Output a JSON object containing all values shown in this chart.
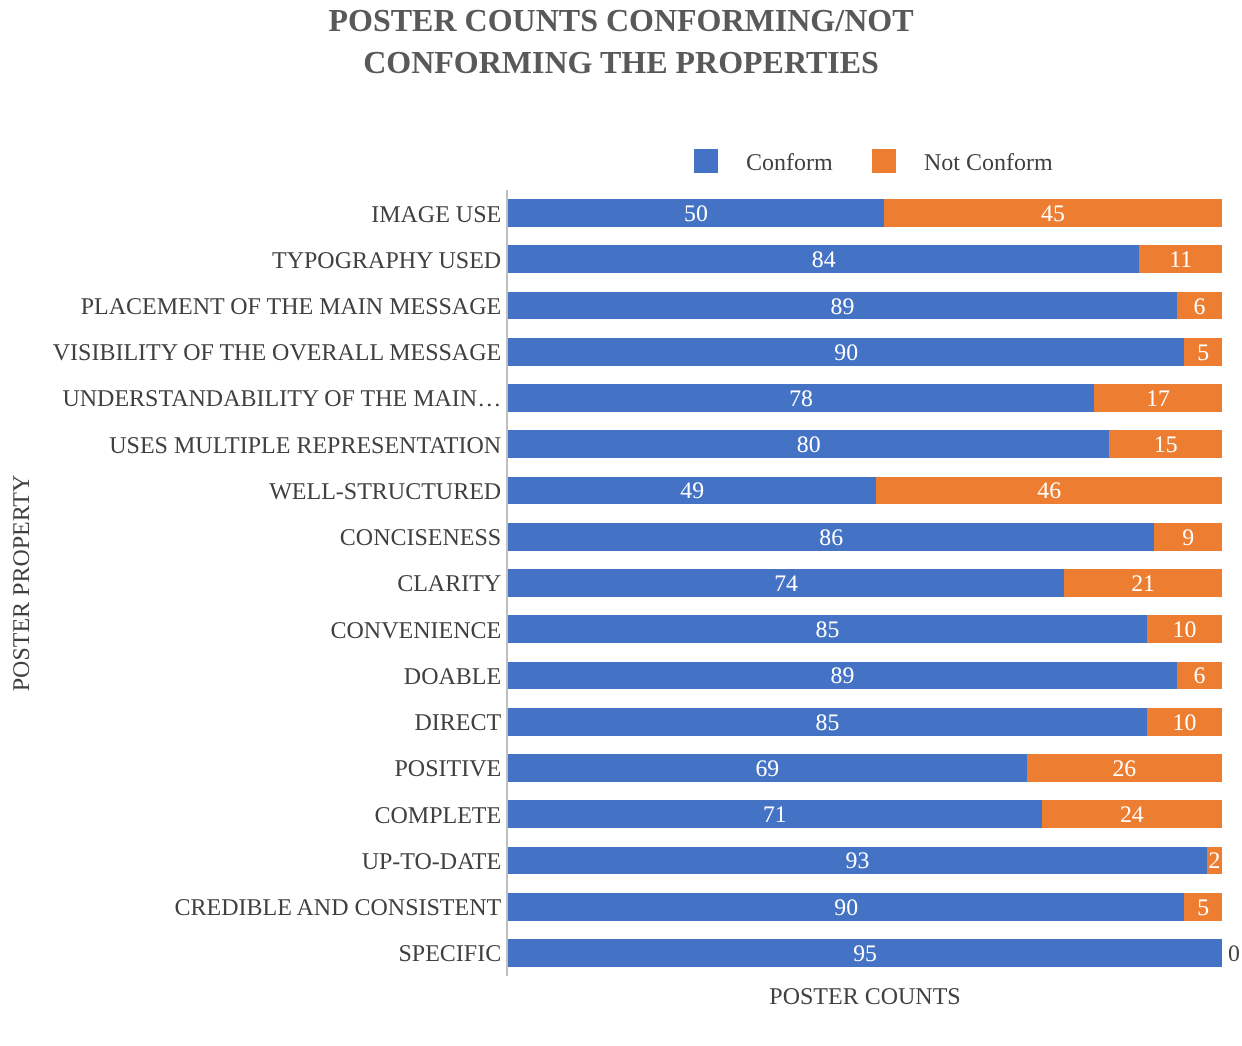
{
  "chart_data": {
    "type": "bar",
    "orientation": "horizontal",
    "stacked": true,
    "title": "POSTER COUNTS CONFORMING/NOT CONFORMING THE PROPERTIES",
    "xlabel": "POSTER COUNTS",
    "ylabel": "POSTER PROPERTY",
    "legend": "top",
    "data_labels": true,
    "tick_labels": "y",
    "categories": [
      "IMAGE USE",
      "TYPOGRAPHY USED",
      "PLACEMENT OF THE MAIN MESSAGE",
      "VISIBILITY OF THE OVERALL MESSAGE",
      "UNDERSTANDABILITY OF THE MAIN…",
      "USES MULTIPLE REPRESENTATION",
      "WELL-STRUCTURED",
      "CONCISENESS",
      "CLARITY",
      "CONVENIENCE",
      "DOABLE",
      "DIRECT",
      "POSITIVE",
      "COMPLETE",
      "UP-TO-DATE",
      "CREDIBLE AND CONSISTENT",
      "SPECIFIC"
    ],
    "series": [
      {
        "name": "Conform",
        "color": "#4472c4",
        "values": [
          50,
          84,
          89,
          90,
          78,
          80,
          49,
          86,
          74,
          85,
          89,
          85,
          69,
          71,
          93,
          90,
          95
        ]
      },
      {
        "name": "Not Conform",
        "color": "#ed7d31",
        "values": [
          45,
          11,
          6,
          5,
          17,
          15,
          46,
          9,
          21,
          10,
          6,
          10,
          26,
          24,
          2,
          5,
          0
        ]
      }
    ]
  }
}
